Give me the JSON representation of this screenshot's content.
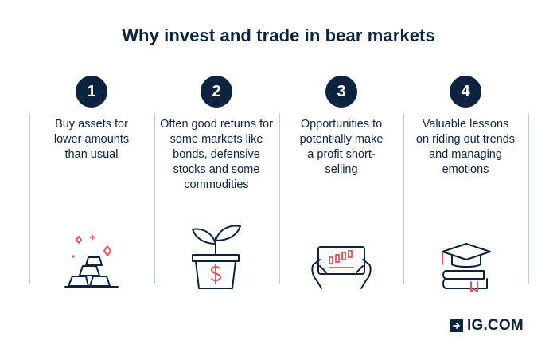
{
  "title": "Why invest and trade in bear markets",
  "steps": [
    {
      "number": "1",
      "text": "Buy assets for lower amounts than usual",
      "icon": "gold-bars-icon"
    },
    {
      "number": "2",
      "text": "Often good returns for some markets like bonds, defensive stocks and some commodities",
      "icon": "plant-pot-dollar-icon"
    },
    {
      "number": "3",
      "text": "Opportunities to potentially make a profit short-selling",
      "icon": "hands-tablet-chart-icon"
    },
    {
      "number": "4",
      "text": "Valuable lessons on riding out trends and managing emotions",
      "icon": "graduation-cap-books-icon"
    }
  ],
  "logo": {
    "text": "IG.COM"
  },
  "colors": {
    "navy": "#0c2340",
    "accent": "#e8505b",
    "divider": "#b8cde0"
  }
}
